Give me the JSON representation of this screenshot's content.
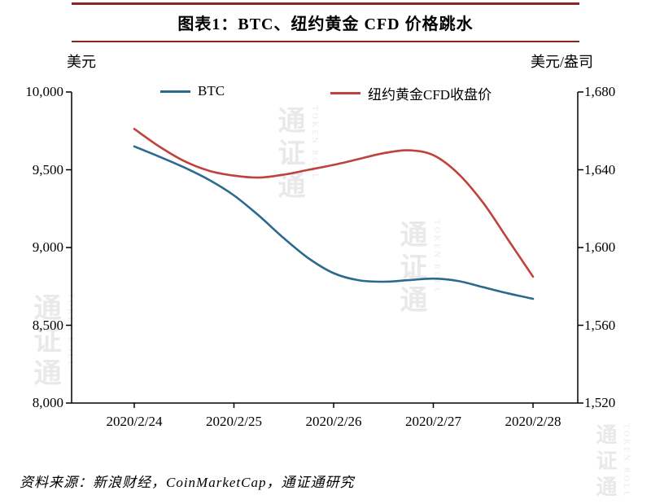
{
  "header": {
    "title": "图表1：BTC、纽约黄金 CFD 价格跳水"
  },
  "axes": {
    "left_unit": "美元",
    "right_unit": "美元/盎司"
  },
  "footer": {
    "source": "资料来源：新浪财经，CoinMarketCap，通证通研究"
  },
  "watermark": {
    "cn": "通证通",
    "en": "TOKEN ROLL"
  },
  "colors": {
    "axis": "#000000",
    "title_rule": "#8c261e",
    "btc_line": "#2b6a8f",
    "gold_line": "#c0423c"
  },
  "chart_data": {
    "type": "line",
    "title": "图表1：BTC、纽约黄金 CFD 价格跳水",
    "grid": false,
    "legend_position": "top",
    "x_tick_labels": [
      "2020/2/24",
      "2020/2/25",
      "2020/2/26",
      "2020/2/27",
      "2020/2/28"
    ],
    "left_axis": {
      "label": "美元",
      "min": 8000,
      "max": 10000,
      "tick_values": [
        8000,
        8500,
        9000,
        9500,
        10000
      ]
    },
    "right_axis": {
      "label": "美元/盎司",
      "min": 1520,
      "max": 1680,
      "tick_values": [
        1520,
        1560,
        1600,
        1640,
        1680
      ]
    },
    "series": [
      {
        "id": "btc",
        "name": "BTC",
        "axis": "left",
        "color": "#2b6a8f",
        "x": [
          0,
          0.25,
          0.5,
          0.75,
          1.0,
          1.25,
          1.5,
          1.75,
          2.0,
          2.25,
          2.5,
          2.75,
          3.0,
          3.25,
          3.5,
          3.75,
          4.0
        ],
        "values": [
          9650,
          9585,
          9515,
          9435,
          9335,
          9205,
          9060,
          8930,
          8835,
          8790,
          8780,
          8790,
          8800,
          8785,
          8745,
          8705,
          8670
        ]
      },
      {
        "id": "gold-cfd",
        "name": "纽约黄金CFD收盘价",
        "axis": "right",
        "color": "#c0423c",
        "x": [
          0,
          0.25,
          0.5,
          0.75,
          1.0,
          1.25,
          1.5,
          1.75,
          2.0,
          2.25,
          2.5,
          2.75,
          3.0,
          3.25,
          3.5,
          3.75,
          4.0
        ],
        "values": [
          1661,
          1652,
          1644.5,
          1639.5,
          1637,
          1636,
          1637.5,
          1640,
          1642.5,
          1645.5,
          1648.5,
          1650,
          1647.5,
          1638,
          1623,
          1604,
          1585
        ]
      }
    ]
  }
}
